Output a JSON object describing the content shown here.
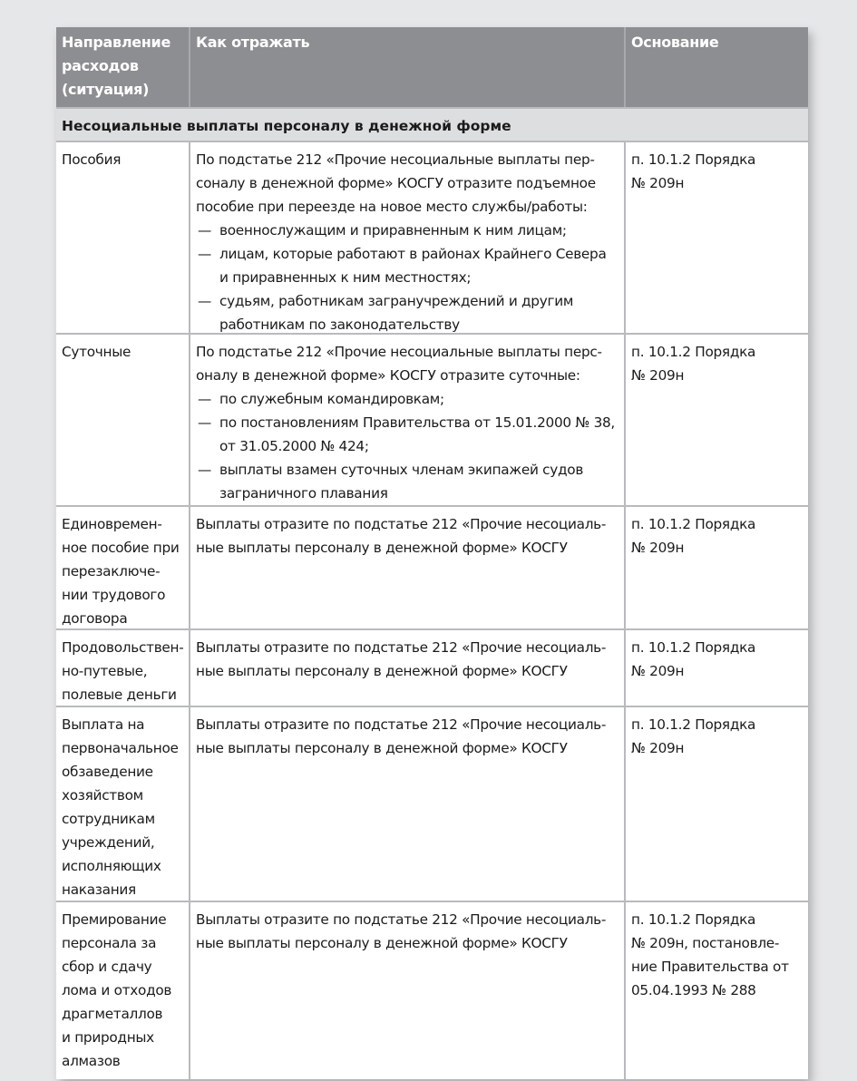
{
  "header": {
    "col1": [
      "Направление",
      "расходов",
      "(ситуация)"
    ],
    "col2": [
      "Как отражать"
    ],
    "col3": [
      "Основание"
    ]
  },
  "section_title": "Несоциальные выплаты персоналу в денежной форме",
  "rows": [
    {
      "h": 212,
      "situation": [
        "Пособия"
      ],
      "how": [
        "По подстатье 212 «Прочие несоциальные выплаты пер-",
        "соналу в денежной форме» КОСГУ отразите подъемное",
        "пособие при переезде на новое место службы/работы:"
      ],
      "bullets": [
        [
          "военнослужащим и приравненным к ним лицам;"
        ],
        [
          "лицам, которые работают в районах Крайнего Севера",
          "и приравненных к ним местностях;"
        ],
        [
          "судьям, работникам загранучреждений и другим",
          "работникам по законодательству"
        ]
      ],
      "basis": [
        "п. 10.1.2 Порядка",
        "№ 209н"
      ]
    },
    {
      "h": 190,
      "situation": [
        "Суточные"
      ],
      "how": [
        "По подстатье 212 «Прочие несоциальные выплаты перс-",
        "оналу в денежной форме» КОСГУ отразите суточные:"
      ],
      "bullets": [
        [
          "по служебным командировкам;"
        ],
        [
          "по постановлениям Правительства от 15.01.2000 № 38,",
          "от 31.05.2000 № 424;"
        ],
        [
          "выплаты взамен суточных членам экипажей судов",
          "заграничного плавания"
        ]
      ],
      "basis": [
        "п. 10.1.2 Порядка",
        "№ 209н"
      ]
    },
    {
      "h": 136,
      "situation": [
        "Единовремен-",
        "ное пособие при",
        "перезаключе-",
        "нии трудового",
        "договора"
      ],
      "how": [
        "Выплаты отразите по подстатье 212 «Прочие несоциаль-",
        "ные выплаты персоналу в денежной форме» КОСГУ"
      ],
      "bullets": [],
      "basis": [
        "п. 10.1.2 Порядка",
        "№ 209н"
      ]
    },
    {
      "h": 85,
      "situation": [
        "Продовольствен-",
        "но-путевые,",
        "полевые деньги"
      ],
      "how": [
        "Выплаты отразите по подстатье 212 «Прочие несоциаль-",
        "ные выплаты персоналу в денежной форме» КОСГУ"
      ],
      "bullets": [],
      "basis": [
        "п. 10.1.2 Порядка",
        "№ 209н"
      ]
    },
    {
      "h": 215,
      "situation": [
        "Выплата на",
        "первоначальное",
        "обзаведение",
        "хозяйством",
        "сотрудникам",
        "учреждений,",
        "исполняющих",
        "наказания"
      ],
      "how": [
        "Выплаты отразите по подстатье 212 «Прочие несоциаль-",
        "ные выплаты персоналу в денежной форме» КОСГУ"
      ],
      "bullets": [],
      "basis": [
        "п. 10.1.2 Порядка",
        "№ 209н"
      ]
    },
    {
      "h": 195,
      "situation": [
        "Премирование",
        "персонала за",
        "сбор и сдачу",
        "лома и отходов",
        "драгметаллов",
        "и природных",
        "алмазов"
      ],
      "how": [
        "Выплаты отразите по подстатье 212 «Прочие несоциаль-",
        "ные выплаты персоналу в денежной форме» КОСГУ"
      ],
      "bullets": [],
      "basis": [
        "п. 10.1.2 Порядка",
        "№ 209н, постановле-",
        "ние Правительства от",
        "05.04.1993 № 288"
      ]
    }
  ],
  "bullet_mark": "—",
  "colors": {
    "header_bg": "#8d8e92",
    "section_bg": "#dddee0",
    "page_bg": "#e6e7e9"
  }
}
